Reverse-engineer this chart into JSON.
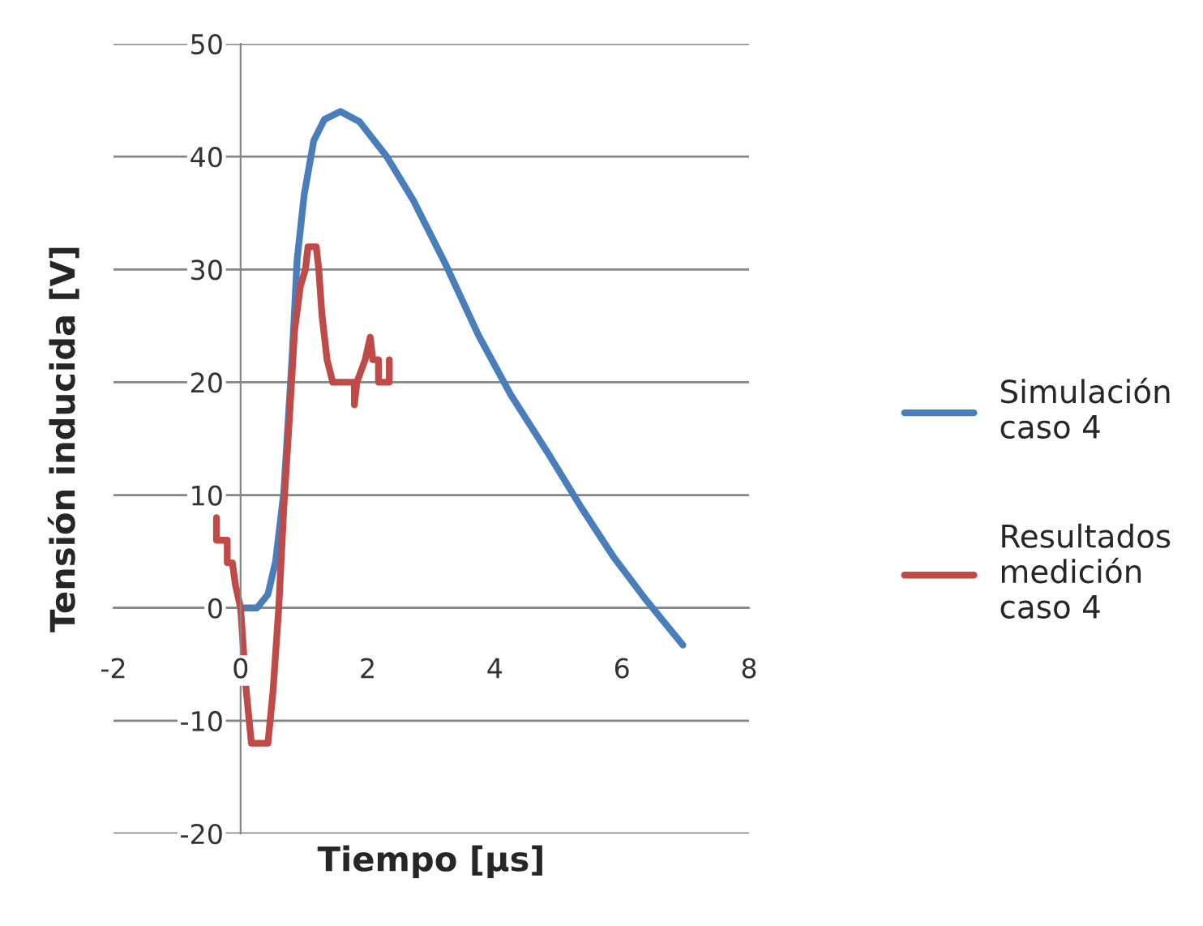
{
  "chart_data": {
    "type": "line",
    "xlabel": "Tiempo [µs]",
    "ylabel": "Tensión inducida [V]",
    "xlim": [
      -2,
      8
    ],
    "xticks": [
      -2,
      0,
      2,
      4,
      6,
      8
    ],
    "ylim": [
      -20,
      50
    ],
    "yticks": [
      -20,
      -10,
      0,
      10,
      20,
      30,
      40,
      50
    ],
    "grid": "y",
    "legend": "right",
    "marker": "none",
    "line_style": "solid",
    "series": [
      {
        "name": "Simulación\ncaso 4",
        "color": "#4a7ebb",
        "x": [
          0,
          0.26,
          0.43,
          0.55,
          0.68,
          0.81,
          0.89,
          1.0,
          1.15,
          1.32,
          1.57,
          1.87,
          2.3,
          2.72,
          3.23,
          3.74,
          4.25,
          4.85,
          5.36,
          5.87,
          6.38,
          6.96
        ],
        "values": [
          0,
          0,
          1.2,
          4.1,
          10.3,
          22.2,
          30.9,
          36.6,
          41.4,
          43.3,
          44.0,
          43.1,
          40.0,
          36.1,
          30.4,
          24.2,
          18.9,
          13.6,
          8.9,
          4.5,
          0.7,
          -3.3
        ]
      },
      {
        "name": "Resultados\nmedición\ncaso 4",
        "color": "#be4b48",
        "x": [
          -0.38,
          -0.38,
          -0.21,
          -0.21,
          -0.13,
          -0.08,
          0,
          0.09,
          0.17,
          0.43,
          0.51,
          0.6,
          0.68,
          0.77,
          0.85,
          0.94,
          1.02,
          1.06,
          1.19,
          1.23,
          1.28,
          1.36,
          1.45,
          1.79,
          1.79,
          1.83,
          1.96,
          2.04,
          2.08,
          2.17,
          2.17,
          2.34,
          2.34
        ],
        "values": [
          8,
          6,
          6,
          4,
          4,
          2,
          0,
          -7.4,
          -12,
          -12,
          -7.4,
          0,
          8.9,
          17,
          24.6,
          28.5,
          30,
          32,
          32,
          30,
          26,
          22,
          20,
          20,
          18,
          20,
          22,
          24,
          22,
          22,
          20,
          20,
          22
        ]
      }
    ]
  }
}
